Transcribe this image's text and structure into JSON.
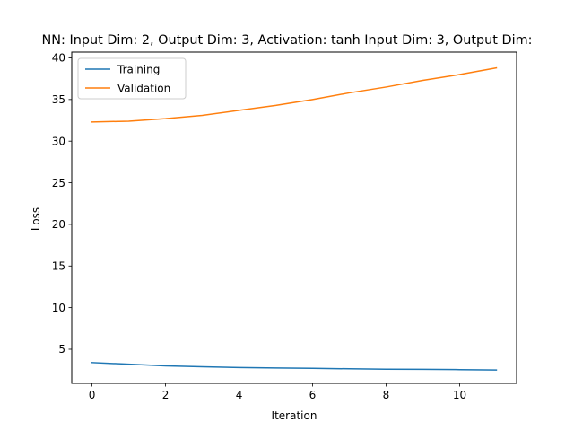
{
  "chart_data": {
    "type": "line",
    "title": "NN: Input Dim: 2, Output Dim: 3, Activation: tanh Input Dim: 3, Output Dim:",
    "xlabel": "Iteration",
    "ylabel": "Loss",
    "xlim": [
      -0.55,
      11.55
    ],
    "ylim": [
      0.9,
      40.7
    ],
    "xticks": [
      0,
      2,
      4,
      6,
      8,
      10
    ],
    "yticks": [
      5,
      10,
      15,
      20,
      25,
      30,
      35,
      40
    ],
    "grid": false,
    "legend_position": "upper-left",
    "x": [
      0,
      1,
      2,
      3,
      4,
      5,
      6,
      7,
      8,
      9,
      10,
      11
    ],
    "series": [
      {
        "name": "Training",
        "color": "#1f77b4",
        "values": [
          3.4,
          3.2,
          3.0,
          2.9,
          2.8,
          2.75,
          2.7,
          2.65,
          2.6,
          2.58,
          2.55,
          2.5
        ]
      },
      {
        "name": "Validation",
        "color": "#ff7f0e",
        "values": [
          32.3,
          32.4,
          32.7,
          33.1,
          33.7,
          34.3,
          35.0,
          35.8,
          36.5,
          37.3,
          38.0,
          38.8
        ]
      }
    ]
  }
}
